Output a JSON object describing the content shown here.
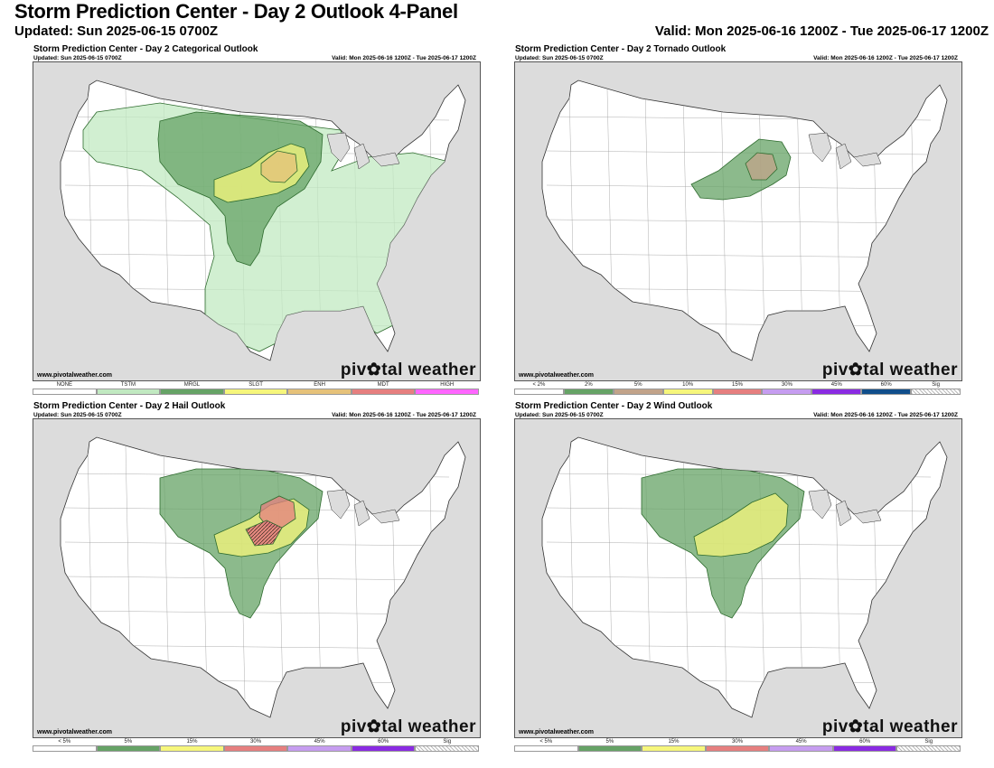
{
  "header": {
    "title": "Storm Prediction Center - Day 2 Outlook 4-Panel",
    "updated": "Updated: Sun 2025-06-15 0700Z",
    "valid": "Valid: Mon 2025-06-16 1200Z - Tue 2025-06-17 1200Z"
  },
  "colors": {
    "ocean": "#dcdcdc",
    "land": "#ffffff",
    "tstm": "#c1e9c1",
    "mrgl": "#66a366",
    "slgt": "#f6f67b",
    "enh": "#e6c27a",
    "mdt": "#e67f7f",
    "high": "#ff66ff",
    "sig_hatch": "#000000"
  },
  "panels": [
    {
      "id": "categorical",
      "title": "Storm Prediction Center - Day 2 Categorical Outlook",
      "updated": "Updated: Sun 2025-06-15 0700Z",
      "valid": "Valid: Mon 2025-06-16 1200Z - Tue 2025-06-17 1200Z",
      "site": "www.pivotalweather.com",
      "brand": "piv✿tal weather",
      "legend": [
        {
          "label": "NONE",
          "color": "#ffffff"
        },
        {
          "label": "TSTM",
          "color": "#c1e9c1"
        },
        {
          "label": "MRGL",
          "color": "#66a366"
        },
        {
          "label": "SLGT",
          "color": "#f6f67b"
        },
        {
          "label": "ENH",
          "color": "#e6c27a"
        },
        {
          "label": "MDT",
          "color": "#e67f7f"
        },
        {
          "label": "HIGH",
          "color": "#ff66ff"
        }
      ]
    },
    {
      "id": "tornado",
      "title": "Storm Prediction Center - Day 2 Tornado Outlook",
      "updated": "Updated: Sun 2025-06-15 0700Z",
      "valid": "Valid: Mon 2025-06-16 1200Z - Tue 2025-06-17 1200Z",
      "site": "www.pivotalweather.com",
      "brand": "piv✿tal weather",
      "legend": [
        {
          "label": "< 2%",
          "color": "#ffffff"
        },
        {
          "label": "2%",
          "color": "#66a366"
        },
        {
          "label": "5%",
          "color": "#c2a38a"
        },
        {
          "label": "10%",
          "color": "#f6f67b"
        },
        {
          "label": "15%",
          "color": "#e67f7f"
        },
        {
          "label": "30%",
          "color": "#c69df0"
        },
        {
          "label": "45%",
          "color": "#8a2be2"
        },
        {
          "label": "60%",
          "color": "#104e8b"
        },
        {
          "label": "Sig",
          "color": "hatch"
        }
      ]
    },
    {
      "id": "hail",
      "title": "Storm Prediction Center - Day 2 Hail Outlook",
      "updated": "Updated: Sun 2025-06-15 0700Z",
      "valid": "Valid: Mon 2025-06-16 1200Z - Tue 2025-06-17 1200Z",
      "site": "www.pivotalweather.com",
      "brand": "piv✿tal weather",
      "legend": [
        {
          "label": "< 5%",
          "color": "#ffffff"
        },
        {
          "label": "5%",
          "color": "#66a366"
        },
        {
          "label": "15%",
          "color": "#f6f67b"
        },
        {
          "label": "30%",
          "color": "#e67f7f"
        },
        {
          "label": "45%",
          "color": "#c69df0"
        },
        {
          "label": "60%",
          "color": "#8a2be2"
        },
        {
          "label": "Sig",
          "color": "hatch"
        }
      ]
    },
    {
      "id": "wind",
      "title": "Storm Prediction Center - Day 2 Wind Outlook",
      "updated": "Updated: Sun 2025-06-15 0700Z",
      "valid": "Valid: Mon 2025-06-16 1200Z - Tue 2025-06-17 1200Z",
      "site": "www.pivotalweather.com",
      "brand": "piv✿tal weather",
      "legend": [
        {
          "label": "< 5%",
          "color": "#ffffff"
        },
        {
          "label": "5%",
          "color": "#66a366"
        },
        {
          "label": "15%",
          "color": "#f6f67b"
        },
        {
          "label": "30%",
          "color": "#e67f7f"
        },
        {
          "label": "45%",
          "color": "#c69df0"
        },
        {
          "label": "60%",
          "color": "#8a2be2"
        },
        {
          "label": "Sig",
          "color": "hatch"
        }
      ]
    }
  ]
}
